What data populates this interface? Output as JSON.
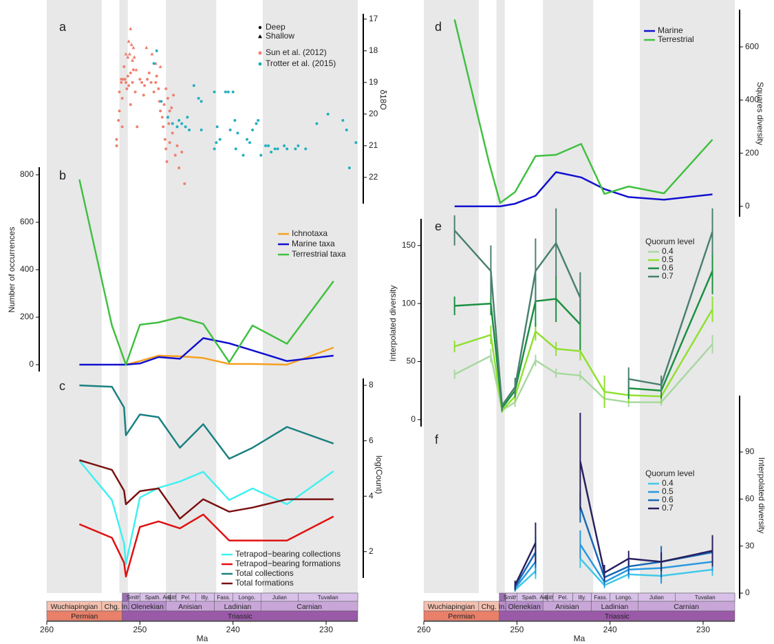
{
  "shading": [
    [
      260,
      254.1
    ],
    [
      252.2,
      251.3
    ],
    [
      247.2,
      241.8
    ],
    [
      236.8,
      226.6
    ]
  ],
  "timescale": {
    "periods": [
      {
        "name": "Permian",
        "start": 260,
        "end": 251.9,
        "color": "#e8806a"
      },
      {
        "name": "Triassic",
        "start": 251.9,
        "end": 226.6,
        "color": "#9a5aa8"
      }
    ],
    "stages": [
      {
        "name": "Wuchiapingian",
        "start": 260,
        "end": 254.1,
        "color": "#f4c0b0"
      },
      {
        "name": "Chg.",
        "start": 254.1,
        "end": 251.9,
        "color": "#f4c0b0"
      },
      {
        "name": "In.",
        "start": 251.9,
        "end": 251.2,
        "color": "#b890cc"
      },
      {
        "name": "Olenekian",
        "start": 251.2,
        "end": 247.2,
        "color": "#b890cc"
      },
      {
        "name": "Anisian",
        "start": 247.2,
        "end": 242,
        "color": "#c9a6d8"
      },
      {
        "name": "Ladinian",
        "start": 242,
        "end": 237,
        "color": "#c9a6d8"
      },
      {
        "name": "Carnian",
        "start": 237,
        "end": 226.6,
        "color": "#c9a6d8"
      }
    ],
    "substages": [
      {
        "name": "Smith.",
        "start": 251.2,
        "end": 250,
        "color": "#d8c0e8"
      },
      {
        "name": "Spath.",
        "start": 250,
        "end": 247.2,
        "color": "#d8c0e8"
      },
      {
        "name": "Aeg.",
        "start": 247.2,
        "end": 246.7,
        "color": "#d8c0e8"
      },
      {
        "name": "Bith.",
        "start": 246.7,
        "end": 246.1,
        "color": "#d8c0e8"
      },
      {
        "name": "Pel.",
        "start": 246.1,
        "end": 244,
        "color": "#d8c0e8"
      },
      {
        "name": "Illy.",
        "start": 244,
        "end": 242,
        "color": "#d8c0e8"
      },
      {
        "name": "Fass.",
        "start": 242,
        "end": 240,
        "color": "#d8c0e8"
      },
      {
        "name": "Longo.",
        "start": 240,
        "end": 237,
        "color": "#d8c0e8"
      },
      {
        "name": "Julian",
        "start": 237,
        "end": 233,
        "color": "#d8c0e8"
      },
      {
        "name": "Tuvalian",
        "start": 233,
        "end": 226.6,
        "color": "#d8c0e8"
      }
    ]
  },
  "chart_data": [
    {
      "type": "scatter",
      "panel": "a",
      "ylabel": "δ18O",
      "xlim": [
        260,
        226.6
      ],
      "ylim": [
        22.83,
        16.83
      ],
      "yticks": [
        17,
        18,
        19,
        20,
        21,
        22
      ],
      "markers": [
        "Deep",
        "Shallow"
      ],
      "series": [
        {
          "name": "Sun et al. (2012)",
          "color": "#f08070",
          "deep": {
            "x": [
              252.5,
              252.5,
              252.3,
              252.2,
              252.2,
              252.0,
              252.0,
              251.9,
              251.8,
              251.7,
              251.6,
              251.5,
              251.4,
              251.3,
              251.2,
              251.0,
              251.0,
              250.8,
              250.7,
              250.5,
              250.3,
              250.0,
              249.8,
              249.5,
              249.2,
              249.0,
              248.8,
              248.5,
              248.3,
              248.2,
              248.0,
              247.9,
              247.8,
              247.6,
              247.5,
              247.4,
              247.3,
              247.2,
              247.1,
              247.0,
              246.9,
              246.8,
              246.6,
              246.5,
              246.2,
              246.0,
              245.8,
              245.5,
              246.4,
              247.2,
              246.8,
              249.6,
              251.9,
              245.2
            ],
            "y": [
              20.8,
              21.0,
              20.2,
              19.9,
              19.3,
              19.0,
              18.9,
              19.5,
              18.9,
              18.5,
              18.9,
              19.0,
              19.2,
              18.8,
              19.1,
              18.7,
              19.7,
              19.0,
              18.6,
              19.3,
              20.4,
              18.9,
              19.0,
              19.1,
              18.9,
              18.7,
              19.0,
              19.3,
              19.0,
              18.8,
              19.2,
              19.6,
              19.9,
              20.1,
              20.4,
              19.7,
              20.8,
              21.1,
              21.5,
              19.5,
              20.3,
              20.9,
              19.8,
              20.6,
              21.3,
              21.0,
              21.7,
              21.2,
              19.4,
              19.2,
              19.9,
              19.4,
              20.4,
              22.2
            ]
          },
          "shallow": {
            "x": [
              251.0,
              251.2,
              250.9,
              250.7,
              251.1,
              250.8,
              251.3,
              250.6,
              249.3,
              248.7,
              248.3,
              247.8,
              251.5,
              250.4
            ],
            "y": [
              17.3,
              17.7,
              17.8,
              17.9,
              18.1,
              18.3,
              18.2,
              18.2,
              17.9,
              18.1,
              18.4,
              18.5,
              18.1,
              18.6
            ]
          }
        },
        {
          "name": "Trotter et al. (2015)",
          "color": "#20b0c0",
          "deep": {
            "x": [
              248.2,
              248.5,
              247.7,
              247.0,
              246.5,
              246.0,
              245.8,
              245.5,
              245.1,
              244.9,
              244.7,
              244.2,
              243.7,
              243.4,
              242.0,
              241.7,
              241.4,
              240.8,
              240.5,
              240.0,
              240.3,
              239.8,
              239.5,
              239.7,
              238.9,
              238.5,
              238.2,
              237.9,
              237.5,
              237.3,
              237.0,
              236.5,
              236.2,
              235.9,
              235.5,
              235.2,
              234.5,
              234.2,
              233.3,
              233.0,
              232.2,
              231.0,
              229.8,
              228.2,
              227.8,
              227.5,
              226.8,
              242.0,
              243.4,
              241.8
            ],
            "y": [
              18.0,
              18.4,
              19.6,
              20.1,
              20.3,
              20.4,
              20.2,
              20.3,
              20.4,
              20.1,
              20.5,
              19.1,
              19.5,
              19.6,
              19.3,
              20.4,
              20.8,
              19.3,
              19.3,
              19.3,
              20.5,
              20.2,
              20.6,
              21.1,
              21.3,
              20.8,
              20.9,
              20.5,
              20.3,
              20.2,
              21.3,
              21.0,
              21.0,
              21.2,
              21.1,
              21.1,
              21.0,
              21.1,
              21.1,
              21.0,
              21.1,
              20.3,
              20.0,
              20.2,
              20.5,
              21.7,
              20.9,
              21.1,
              20.5,
              20.9
            ]
          }
        }
      ]
    },
    {
      "type": "line",
      "panel": "b",
      "ylabel": "Number of occurrences",
      "xlim": [
        260,
        226.6
      ],
      "ylim": [
        -29,
        832
      ],
      "yticks": [
        0,
        200,
        400,
        600,
        800
      ],
      "x": [
        256.5,
        253,
        251.5,
        250,
        248,
        245.7,
        243.2,
        240.4,
        237.9,
        234.2,
        229.2
      ],
      "series": [
        {
          "name": "Ichnotaxa",
          "color": "#f5a020",
          "values": [
            null,
            null,
            0,
            15,
            38,
            35,
            28,
            3,
            3,
            0,
            72
          ]
        },
        {
          "name": "Marine taxa",
          "color": "#1010d0",
          "values": [
            0,
            0,
            0,
            5,
            32,
            25,
            112,
            90,
            60,
            15,
            38
          ]
        },
        {
          "name": "Terrestrial taxa",
          "color": "#40c040",
          "values": [
            780,
            165,
            0,
            168,
            178,
            200,
            172,
            10,
            165,
            88,
            352
          ]
        }
      ]
    },
    {
      "type": "line",
      "panel": "c",
      "ylabel": "log(Count)",
      "xlabel": "Ma",
      "xlim": [
        260,
        226.6
      ],
      "xticks": [
        260,
        250,
        240,
        230
      ],
      "ylim": [
        1.05,
        8.25
      ],
      "yticks": [
        2,
        4,
        6,
        8
      ],
      "x": [
        256.5,
        253,
        251.7,
        251.5,
        250,
        248,
        245.7,
        243.2,
        240.4,
        237.9,
        234.2,
        229.2
      ],
      "series": [
        {
          "name": "Tetrapod−bearing collections",
          "color": "#40f0f0",
          "values": [
            5.28,
            3.86,
            2.3,
            1.55,
            3.95,
            4.3,
            4.53,
            4.88,
            3.86,
            4.28,
            3.71,
            4.9
          ]
        },
        {
          "name": "Tetrapod−bearing formations",
          "color": "#e01010",
          "values": [
            2.99,
            2.5,
            1.6,
            1.1,
            2.89,
            3.09,
            2.84,
            3.34,
            2.4,
            2.4,
            2.4,
            3.27
          ]
        },
        {
          "name": "Total collections",
          "color": "#1a8080",
          "values": [
            8.0,
            7.95,
            7.2,
            6.2,
            6.95,
            6.85,
            5.75,
            6.6,
            5.35,
            5.75,
            6.5,
            5.9
          ]
        },
        {
          "name": "Total formations",
          "color": "#7a1010",
          "values": [
            5.3,
            4.95,
            4.2,
            3.71,
            4.18,
            4.28,
            3.19,
            3.89,
            3.44,
            3.59,
            3.89,
            3.89
          ]
        }
      ]
    },
    {
      "type": "line",
      "panel": "d",
      "ylabel": "Squares diversity",
      "xlim": [
        260,
        226.6
      ],
      "ylim": [
        -39,
        740
      ],
      "yticks": [
        0,
        200,
        400,
        600
      ],
      "x": [
        256.7,
        253,
        251.8,
        250.2,
        248,
        245.8,
        243.1,
        240.6,
        238,
        234.2,
        229
      ],
      "series": [
        {
          "name": "Marine",
          "color": "#1010d0",
          "values": [
            0,
            0,
            0,
            10,
            40,
            129,
            109,
            65,
            35,
            25,
            45
          ]
        },
        {
          "name": "Terrestrial",
          "color": "#40c040",
          "values": [
            703,
            166,
            13,
            54,
            189,
            194,
            235,
            47,
            75,
            49,
            251
          ]
        }
      ]
    },
    {
      "type": "line",
      "panel": "e",
      "ylabel": "Interpolated diversity",
      "legend_title": "Quorum level",
      "xlim": [
        260,
        226.6
      ],
      "ylim": [
        -6,
        173
      ],
      "yticks": [
        0,
        50,
        100,
        150
      ],
      "x": [
        256.7,
        252.8,
        251.6,
        250.2,
        248,
        245.8,
        243.2,
        240.6,
        238,
        234.5,
        229
      ],
      "series": [
        {
          "name": "0.4",
          "color": "#a8d8a0",
          "values": [
            39,
            55,
            8,
            15,
            51,
            40,
            38,
            18,
            15,
            15,
            65
          ],
          "errors": [
            4,
            6,
            2,
            4,
            5,
            4,
            4,
            5,
            4,
            3,
            8
          ]
        },
        {
          "name": "0.5",
          "color": "#90e030",
          "values": [
            63,
            73,
            8,
            20,
            76,
            61,
            59,
            24,
            21,
            20,
            95
          ],
          "errors": [
            5,
            8,
            2,
            5,
            8,
            6,
            8,
            14,
            7,
            6,
            11
          ]
        },
        {
          "name": "0.6",
          "color": "#1a9040",
          "values": [
            98,
            100,
            10,
            25,
            102,
            104,
            82,
            null,
            27,
            25,
            128
          ],
          "errors": [
            8,
            10,
            3,
            6,
            22,
            20,
            22,
            null,
            9,
            7,
            20
          ]
        },
        {
          "name": "0.7",
          "color": "#4a8070",
          "values": [
            163,
            128,
            12,
            28,
            128,
            152,
            105,
            null,
            35,
            30,
            162
          ],
          "errors": [
            13,
            22,
            4,
            8,
            28,
            30,
            22,
            null,
            10,
            8,
            20
          ]
        }
      ]
    },
    {
      "type": "line",
      "panel": "f",
      "ylabel": "Interpolated diversity",
      "legend_title": "Quorum level",
      "xlabel": "Ma",
      "xlim": [
        260,
        226.6
      ],
      "xticks": [
        260,
        250,
        240,
        230
      ],
      "ylim": [
        -3.5,
        126
      ],
      "yticks": [
        0,
        30,
        60,
        90
      ],
      "x": [
        250.2,
        248,
        245.8,
        243.2,
        240.6,
        238,
        234.5,
        229
      ],
      "series": [
        {
          "name": "0.4",
          "color": "#40c8e8",
          "values": [
            2,
            14,
            null,
            22,
            5,
            12,
            11,
            15
          ],
          "errors": [
            1,
            5,
            null,
            6,
            2,
            3,
            4,
            4
          ]
        },
        {
          "name": "0.5",
          "color": "#2898e0",
          "values": [
            3,
            20,
            null,
            31,
            7,
            15,
            16,
            20
          ],
          "errors": [
            2,
            8,
            null,
            9,
            3,
            5,
            10,
            6
          ]
        },
        {
          "name": "0.6",
          "color": "#1868b8",
          "values": [
            4,
            26,
            null,
            55,
            10,
            17,
            20,
            26
          ],
          "errors": [
            2,
            10,
            null,
            10,
            4,
            5,
            10,
            8
          ]
        },
        {
          "name": "0.7",
          "color": "#282060",
          "values": [
            5,
            32,
            null,
            84,
            13,
            22,
            20,
            27
          ],
          "errors": [
            3,
            13,
            null,
            31,
            5,
            5,
            6,
            10
          ]
        }
      ]
    }
  ]
}
